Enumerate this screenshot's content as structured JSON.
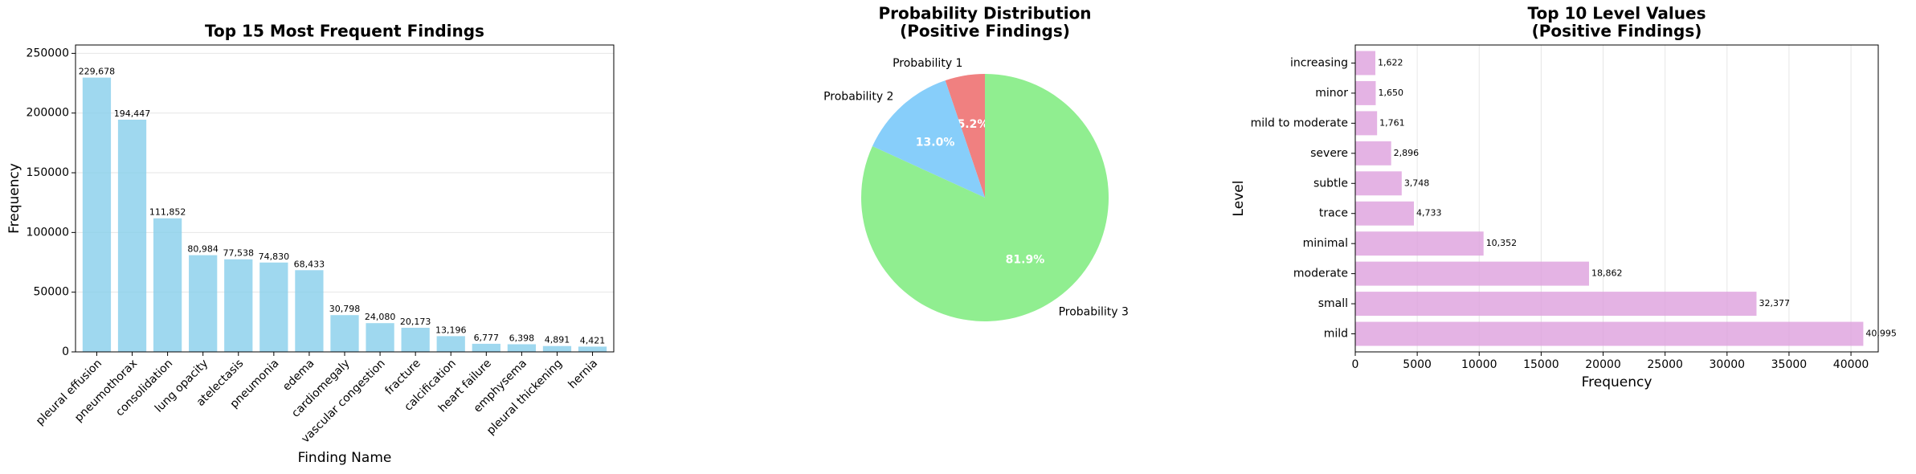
{
  "chart_data": [
    {
      "type": "bar",
      "title": [
        "Top 15 Most Frequent Findings"
      ],
      "x_label": "Finding Name",
      "y_label": "Frequency",
      "categories": [
        "pleural effusion",
        "pneumothorax",
        "consolidation",
        "lung opacity",
        "atelectasis",
        "pneumonia",
        "edema",
        "cardiomegaly",
        "vascular congestion",
        "fracture",
        "calcification",
        "heart failure",
        "emphysema",
        "pleural thickening",
        "hernia"
      ],
      "values": [
        229678,
        194447,
        111852,
        80984,
        77538,
        74830,
        68433,
        30798,
        24080,
        20173,
        13196,
        6777,
        6398,
        4891,
        4421
      ],
      "value_labels": [
        "229,678",
        "194,447",
        "111,852",
        "80,984",
        "77,538",
        "74,830",
        "68,433",
        "30,798",
        "24,080",
        "20,173",
        "13,196",
        "6,777",
        "6,398",
        "4,891",
        "4,421"
      ],
      "color": "#87ceeb",
      "ylim": [
        0,
        257000
      ],
      "yticks": [
        0,
        50000,
        100000,
        150000,
        200000,
        250000
      ],
      "grid": "y"
    },
    {
      "type": "pie",
      "title": [
        "Probability Distribution",
        "(Positive Findings)"
      ],
      "categories": [
        "Probability 1",
        "Probability 2",
        "Probability 3"
      ],
      "values": [
        5.2,
        13.0,
        81.9
      ],
      "value_labels": [
        "5.2%",
        "13.0%",
        "81.9%"
      ],
      "colors": [
        "#f08080",
        "#87cefa",
        "#90ee90"
      ]
    },
    {
      "type": "barh",
      "title": [
        "Top 10 Level Values",
        "(Positive Findings)"
      ],
      "x_label": "Frequency",
      "y_label": "Level",
      "categories": [
        "mild",
        "small",
        "moderate",
        "minimal",
        "trace",
        "subtle",
        "severe",
        "mild to moderate",
        "minor",
        "increasing"
      ],
      "values": [
        40995,
        32377,
        18862,
        10352,
        4733,
        3748,
        2896,
        1761,
        1650,
        1622
      ],
      "value_labels": [
        "40,995",
        "32,377",
        "18,862",
        "10,352",
        "4,733",
        "3,748",
        "2,896",
        "1,761",
        "1,650",
        "1,622"
      ],
      "color": "#dda0dd",
      "xlim": [
        0,
        42200
      ],
      "xticks": [
        0,
        5000,
        10000,
        15000,
        20000,
        25000,
        30000,
        35000,
        40000
      ],
      "grid": "x"
    }
  ]
}
